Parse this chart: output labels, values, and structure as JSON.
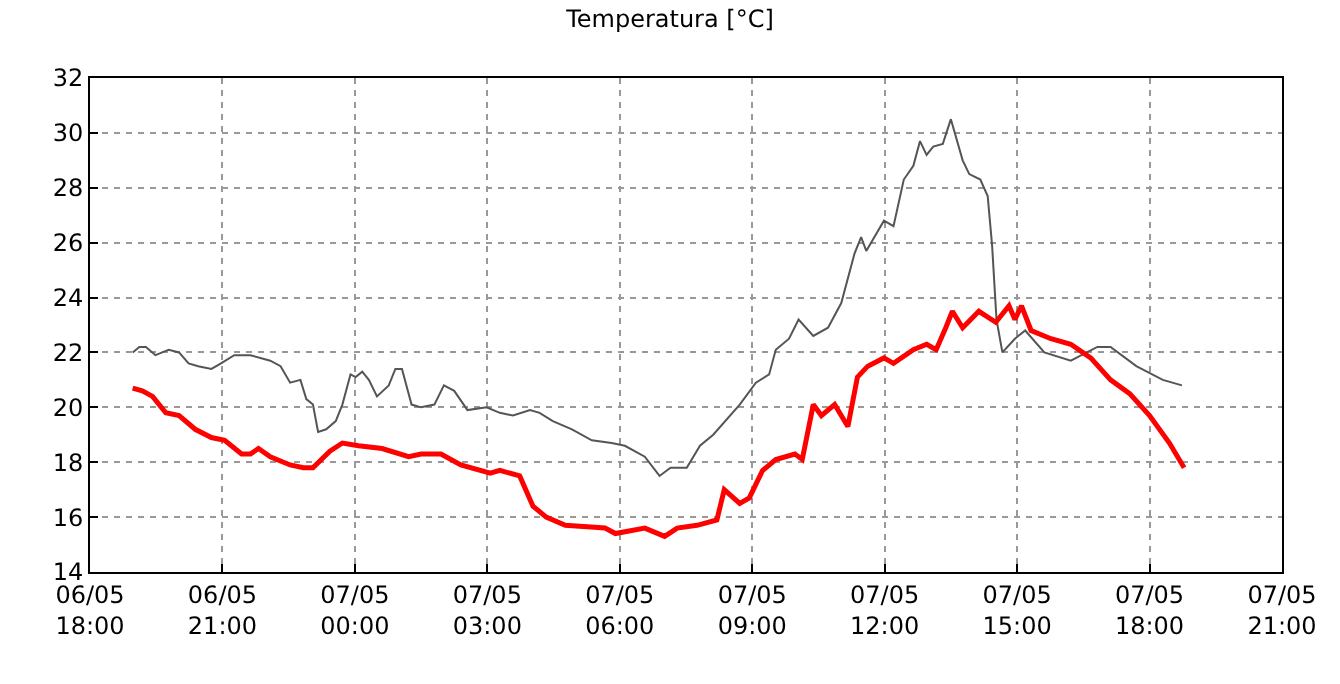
{
  "chart_data": {
    "type": "line",
    "title": "Temperatura [°C]",
    "xlim": [
      "--05-06T18:00",
      "--05-07T21:00"
    ],
    "xticks": [
      {
        "value": "--05-06T18:00",
        "label": "06/05\n18:00"
      },
      {
        "value": "--05-06T21:00",
        "label": "06/05\n21:00"
      },
      {
        "value": "--05-07T00:00",
        "label": "07/05\n00:00"
      },
      {
        "value": "--05-07T03:00",
        "label": "07/05\n03:00"
      },
      {
        "value": "--05-07T06:00",
        "label": "07/05\n06:00"
      },
      {
        "value": "--05-07T09:00",
        "label": "07/05\n09:00"
      },
      {
        "value": "--05-07T12:00",
        "label": "07/05\n12:00"
      },
      {
        "value": "--05-07T15:00",
        "label": "07/05\n15:00"
      },
      {
        "value": "--05-07T18:00",
        "label": "07/05\n18:00"
      },
      {
        "value": "--05-07T21:00",
        "label": "07/05\n21:00"
      }
    ],
    "ylim": [
      14,
      32
    ],
    "yticks": [
      14,
      16,
      18,
      20,
      22,
      24,
      26,
      28,
      30,
      32
    ],
    "grid": true,
    "series": [
      {
        "color": "#555555",
        "x": [
          "--05-06T18:58",
          "--05-06T19:07",
          "--05-06T19:16",
          "--05-06T19:29",
          "--05-06T19:47",
          "--05-06T20:01",
          "--05-06T20:14",
          "--05-06T20:27",
          "--05-06T20:45",
          "--05-06T20:58",
          "--05-06T21:16",
          "--05-06T21:38",
          "--05-06T22:05",
          "--05-06T22:19",
          "--05-06T22:32",
          "--05-06T22:46",
          "--05-06T22:54",
          "--05-06T23:03",
          "--05-06T23:10",
          "--05-06T23:21",
          "--05-06T23:34",
          "--05-06T23:43",
          "--05-06T23:54",
          "--05-07T00:01",
          "--05-07T00:10",
          "--05-07T00:19",
          "--05-07T00:30",
          "--05-07T00:46",
          "--05-07T00:55",
          "--05-07T01:04",
          "--05-07T01:17",
          "--05-07T01:30",
          "--05-07T01:48",
          "--05-07T02:01",
          "--05-07T02:15",
          "--05-07T02:33",
          "--05-07T02:59",
          "--05-07T03:17",
          "--05-07T03:35",
          "--05-07T03:58",
          "--05-07T04:11",
          "--05-07T04:29",
          "--05-07T04:55",
          "--05-07T05:22",
          "--05-07T05:49",
          "--05-07T06:07",
          "--05-07T06:34",
          "--05-07T06:54",
          "--05-07T07:09",
          "--05-07T07:31",
          "--05-07T07:49",
          "--05-07T08:07",
          "--05-07T08:43",
          "--05-07T09:05",
          "--05-07T09:23",
          "--05-07T09:32",
          "--05-07T09:50",
          "--05-07T10:03",
          "--05-07T10:23",
          "--05-07T10:43",
          "--05-07T11:01",
          "--05-07T11:19",
          "--05-07T11:28",
          "--05-07T11:35",
          "--05-07T11:59",
          "--05-07T12:12",
          "--05-07T12:26",
          "--05-07T12:39",
          "--05-07T12:48",
          "--05-07T12:57",
          "--05-07T13:06",
          "--05-07T13:19",
          "--05-07T13:30",
          "--05-07T13:46",
          "--05-07T13:55",
          "--05-07T14:10",
          "--05-07T14:20",
          "--05-07T14:26",
          "--05-07T14:32",
          "--05-07T14:40",
          "--05-07T14:57",
          "--05-07T15:11",
          "--05-07T15:37",
          "--05-07T16:13",
          "--05-07T16:49",
          "--05-07T17:07",
          "--05-07T17:42",
          "--05-07T18:18",
          "--05-07T18:44"
        ],
        "values": [
          22.0,
          22.2,
          22.2,
          21.9,
          22.1,
          22.0,
          21.6,
          21.5,
          21.4,
          21.6,
          21.9,
          21.9,
          21.7,
          21.5,
          20.9,
          21.0,
          20.3,
          20.1,
          19.1,
          19.2,
          19.5,
          20.1,
          21.2,
          21.1,
          21.3,
          21.0,
          20.4,
          20.8,
          21.4,
          21.4,
          20.1,
          20.0,
          20.1,
          20.8,
          20.6,
          19.9,
          20.0,
          19.8,
          19.7,
          19.9,
          19.8,
          19.5,
          19.2,
          18.8,
          18.7,
          18.6,
          18.2,
          17.5,
          17.8,
          17.8,
          18.6,
          19.0,
          20.1,
          20.9,
          21.2,
          22.1,
          22.5,
          23.2,
          22.6,
          22.9,
          23.8,
          25.6,
          26.2,
          25.7,
          26.8,
          26.6,
          28.3,
          28.8,
          29.7,
          29.2,
          29.5,
          29.6,
          30.5,
          29.0,
          28.5,
          28.3,
          27.7,
          25.9,
          23.2,
          22.0,
          22.5,
          22.8,
          22.0,
          21.7,
          22.2,
          22.2,
          21.5,
          21.0,
          20.8
        ]
      },
      {
        "color": "#ff0000",
        "x": [
          "--05-06T18:58",
          "--05-06T19:11",
          "--05-06T19:25",
          "--05-06T19:43",
          "--05-06T20:01",
          "--05-06T20:23",
          "--05-06T20:45",
          "--05-06T21:03",
          "--05-06T21:26",
          "--05-06T21:38",
          "--05-06T21:49",
          "--05-06T22:05",
          "--05-06T22:32",
          "--05-06T22:50",
          "--05-06T23:03",
          "--05-06T23:26",
          "--05-06T23:43",
          "--05-07T00:05",
          "--05-07T00:37",
          "--05-07T01:13",
          "--05-07T01:30",
          "--05-07T01:57",
          "--05-07T02:24",
          "--05-07T03:04",
          "--05-07T03:17",
          "--05-07T03:44",
          "--05-07T04:02",
          "--05-07T04:20",
          "--05-07T04:46",
          "--05-07T05:40",
          "--05-07T05:54",
          "--05-07T06:34",
          "--05-07T07:01",
          "--05-07T07:18",
          "--05-07T07:45",
          "--05-07T08:12",
          "--05-07T08:22",
          "--05-07T08:43",
          "--05-07T08:56",
          "--05-07T09:14",
          "--05-07T09:32",
          "--05-07T09:58",
          "--05-07T10:08",
          "--05-07T10:23",
          "--05-07T10:34",
          "--05-07T10:52",
          "--05-07T11:10",
          "--05-07T11:23",
          "--05-07T11:37",
          "--05-07T11:59",
          "--05-07T12:12",
          "--05-07T12:39",
          "--05-07T12:57",
          "--05-07T13:10",
          "--05-07T13:23",
          "--05-07T13:32",
          "--05-07T13:46",
          "--05-07T14:08",
          "--05-07T14:31",
          "--05-07T14:49",
          "--05-07T14:57",
          "--05-07T15:06",
          "--05-07T15:19",
          "--05-07T15:46",
          "--05-07T16:13",
          "--05-07T16:40",
          "--05-07T17:07",
          "--05-07T17:33",
          "--05-07T18:00",
          "--05-07T18:27",
          "--05-07T18:47"
        ],
        "values": [
          20.7,
          20.6,
          20.4,
          19.8,
          19.7,
          19.2,
          18.9,
          18.8,
          18.3,
          18.3,
          18.5,
          18.2,
          17.9,
          17.8,
          17.8,
          18.4,
          18.7,
          18.6,
          18.5,
          18.2,
          18.3,
          18.3,
          17.9,
          17.6,
          17.7,
          17.5,
          16.4,
          16.0,
          15.7,
          15.6,
          15.4,
          15.6,
          15.3,
          15.6,
          15.7,
          15.9,
          17.0,
          16.5,
          16.7,
          17.7,
          18.1,
          18.3,
          18.1,
          20.1,
          19.7,
          20.1,
          19.3,
          21.1,
          21.5,
          21.8,
          21.6,
          22.1,
          22.3,
          22.1,
          22.9,
          23.5,
          22.9,
          23.5,
          23.1,
          23.7,
          23.2,
          23.7,
          22.8,
          22.5,
          22.3,
          21.8,
          21.0,
          20.5,
          19.7,
          18.7,
          17.8
        ]
      }
    ]
  }
}
